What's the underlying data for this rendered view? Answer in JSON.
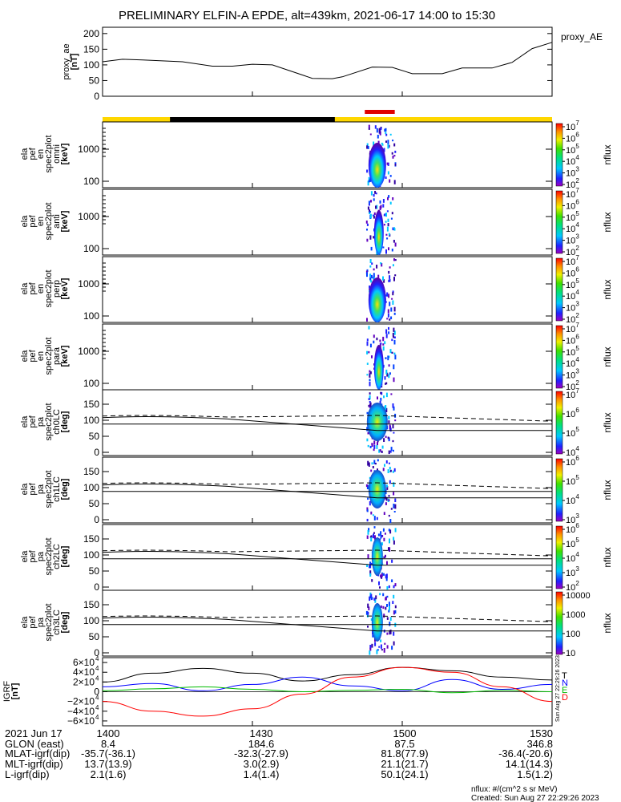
{
  "title": "PRELIMINARY ELFIN-A EPDE, alt=439km, 2021-06-17 14:00 to 15:30",
  "colors": {
    "line": "#000000",
    "bar_yellow": "#ffd700",
    "bar_black": "#000000",
    "bar_red": "#e00000",
    "n_blue": "#0000ff",
    "e_green": "#00bb00",
    "d_red": "#ff0000"
  },
  "chart_data": [
    {
      "type": "line",
      "panel": "proxy_ae",
      "ylabel": [
        "proxy_ae",
        "[nT]"
      ],
      "legend": "proxy_AE",
      "yticks": [
        "200",
        "150",
        "100",
        "50",
        "0"
      ],
      "ylim": [
        0,
        220
      ],
      "x_minutes": [
        0,
        4,
        8,
        16,
        22,
        26,
        30,
        34,
        42,
        46,
        48,
        54,
        58,
        62,
        68,
        72,
        78,
        82,
        86,
        90
      ],
      "values": [
        110,
        118,
        116,
        110,
        96,
        96,
        102,
        100,
        57,
        56,
        62,
        93,
        92,
        72,
        72,
        90,
        90,
        108,
        152,
        172
      ]
    },
    {
      "type": "heatmap",
      "panel": "omni",
      "ylabel": [
        "ela",
        "pef",
        "en",
        "spec2plot",
        "omni",
        "[keV]"
      ],
      "yticks": [
        "1000",
        "100"
      ],
      "cbar_label": "nflux",
      "cbar_ticks": [
        "10",
        "10",
        "10",
        "10",
        "10",
        "10"
      ],
      "cbar_exps": [
        "7",
        "6",
        "5",
        "4",
        "3",
        "2"
      ],
      "time_range": [
        "14:52",
        "14:55"
      ],
      "energy_range_keV": [
        60,
        7000
      ]
    },
    {
      "type": "heatmap",
      "panel": "anti",
      "ylabel": [
        "ela",
        "pef",
        "en",
        "spec2plot",
        "anti",
        "[keV]"
      ],
      "yticks": [
        "1000",
        "100"
      ],
      "cbar_label": "nflux",
      "cbar_ticks": [
        "10",
        "10",
        "10",
        "10",
        "10",
        "10"
      ],
      "cbar_exps": [
        "7",
        "6",
        "5",
        "4",
        "3",
        "2"
      ],
      "time_range": [
        "14:52",
        "14:55"
      ],
      "energy_range_keV": [
        60,
        7000
      ]
    },
    {
      "type": "heatmap",
      "panel": "perp",
      "ylabel": [
        "ela",
        "pef",
        "en",
        "spec2plot",
        "perp",
        "[keV]"
      ],
      "yticks": [
        "1000",
        "100"
      ],
      "cbar_label": "nflux",
      "cbar_ticks": [
        "10",
        "10",
        "10",
        "10",
        "10",
        "10"
      ],
      "cbar_exps": [
        "7",
        "6",
        "5",
        "4",
        "3",
        "2"
      ],
      "time_range": [
        "14:52",
        "14:55"
      ],
      "energy_range_keV": [
        60,
        7000
      ]
    },
    {
      "type": "heatmap",
      "panel": "para",
      "ylabel": [
        "ela",
        "pef",
        "en",
        "spec2plot",
        "para",
        "[keV]"
      ],
      "yticks": [
        "1000",
        "100"
      ],
      "cbar_label": "nflux",
      "cbar_ticks": [
        "10",
        "10",
        "10",
        "10",
        "10",
        "10"
      ],
      "cbar_exps": [
        "7",
        "6",
        "5",
        "4",
        "3",
        "2"
      ],
      "time_range": [
        "14:52",
        "14:55"
      ],
      "energy_range_keV": [
        60,
        7000
      ]
    },
    {
      "type": "heatmap",
      "panel": "ch0LC",
      "ylabel": [
        "ela",
        "pef",
        "pa",
        "spec2plot",
        "ch0LC",
        "[deg]"
      ],
      "yticks": [
        "150",
        "100",
        "50",
        "0"
      ],
      "ylim": [
        0,
        180
      ],
      "cbar_label": "nflux",
      "cbar_ticks": [
        "10",
        "10",
        "10",
        "10"
      ],
      "cbar_exps": [
        "7",
        "6",
        "5",
        "4"
      ],
      "time_range": [
        "14:52",
        "14:55"
      ],
      "solid_deg": [
        108,
        88,
        68
      ],
      "dashed_deg": [
        113,
        97
      ]
    },
    {
      "type": "heatmap",
      "panel": "ch1LC",
      "ylabel": [
        "ela",
        "pef",
        "pa",
        "spec2plot",
        "ch1LC",
        "[deg]"
      ],
      "yticks": [
        "150",
        "100",
        "50",
        "0"
      ],
      "ylim": [
        0,
        180
      ],
      "cbar_label": "nflux",
      "cbar_ticks": [
        "10",
        "10",
        "10",
        "10"
      ],
      "cbar_exps": [
        "6",
        "5",
        "4",
        "3"
      ],
      "time_range": [
        "14:52",
        "14:55"
      ],
      "solid_deg": [
        108,
        88,
        68
      ],
      "dashed_deg": [
        113,
        97
      ]
    },
    {
      "type": "heatmap",
      "panel": "ch2LC",
      "ylabel": [
        "ela",
        "pef",
        "pa",
        "spec2plot",
        "ch2LC",
        "[deg]"
      ],
      "yticks": [
        "150",
        "100",
        "50",
        "0"
      ],
      "ylim": [
        0,
        180
      ],
      "cbar_label": "nflux",
      "cbar_ticks": [
        "10",
        "10",
        "10",
        "10",
        "10"
      ],
      "cbar_exps": [
        "6",
        "5",
        "4",
        "3",
        "2"
      ],
      "time_range": [
        "14:52",
        "14:55"
      ],
      "solid_deg": [
        108,
        88,
        68
      ],
      "dashed_deg": [
        113,
        97
      ]
    },
    {
      "type": "heatmap",
      "panel": "ch3LC",
      "ylabel": [
        "ela",
        "pef",
        "pa",
        "spec2plot",
        "ch3LC",
        "[deg]"
      ],
      "yticks": [
        "150",
        "100",
        "50",
        "0"
      ],
      "ylim": [
        0,
        180
      ],
      "cbar_label": "nflux",
      "cbar_ticks": [
        "10000",
        "1000",
        "100",
        "10"
      ],
      "time_range": [
        "14:52",
        "14:55"
      ],
      "solid_deg": [
        108,
        88,
        68
      ],
      "dashed_deg": [
        113,
        97
      ]
    },
    {
      "type": "line",
      "panel": "IGRF",
      "ylabel": [
        "IGRF",
        "[nT]"
      ],
      "yticks": [
        "6×10",
        "4×10",
        "2×10",
        "0",
        "−2×10",
        "−4×10",
        "−6×10"
      ],
      "ytick_exp": "4",
      "ylim": [
        -70000,
        70000
      ],
      "series": [
        {
          "name": "T",
          "x_minutes": [
            0,
            10,
            20,
            30,
            40,
            50,
            60,
            70,
            80,
            90
          ],
          "values": [
            20000,
            38000,
            48000,
            38000,
            22000,
            35000,
            50000,
            43000,
            30000,
            24000
          ]
        },
        {
          "name": "N",
          "x_minutes": [
            0,
            10,
            20,
            30,
            40,
            50,
            60,
            70,
            80,
            90
          ],
          "values": [
            10000,
            17000,
            2000,
            15000,
            30000,
            12000,
            2000,
            25000,
            5000,
            15000
          ]
        },
        {
          "name": "E",
          "x_minutes": [
            0,
            10,
            20,
            30,
            40,
            50,
            60,
            70,
            80,
            90
          ],
          "values": [
            2000,
            6000,
            10000,
            5000,
            0,
            3000,
            5000,
            -2000,
            3000,
            0
          ]
        },
        {
          "name": "D",
          "x_minutes": [
            0,
            10,
            20,
            30,
            40,
            50,
            60,
            70,
            80,
            90
          ],
          "values": [
            -20000,
            -40000,
            -50000,
            -35000,
            -5000,
            30000,
            50000,
            40000,
            10000,
            -20000
          ]
        }
      ]
    }
  ],
  "time_axis": {
    "row_labels": [
      "2021 Jun 17",
      "GLON (east)",
      "MLAT-igrf(dip)",
      "MLT-igrf(dip)",
      "L-igrf(dip)"
    ],
    "columns": [
      {
        "values": [
          "1400",
          "8.4",
          "-35.7(-36.1)",
          "13.7(13.9)",
          "2.1(1.6)"
        ]
      },
      {
        "values": [
          "1430",
          "184.6",
          "-32.3(-27.9)",
          "3.0(2.9)",
          "1.4(1.4)"
        ]
      },
      {
        "values": [
          "1500",
          "87.5",
          "81.8(77.9)",
          "21.1(21.7)",
          "50.1(24.1)"
        ]
      },
      {
        "values": [
          "1530",
          "346.8",
          "-36.4(-20.6)",
          "14.1(14.3)",
          "1.5(1.2)"
        ]
      }
    ]
  },
  "footer": {
    "units": "nflux: #/(cm^2 s sr MeV)",
    "created": "Created: Sun Aug 27 22:29:26 2023",
    "side_stamp": "Sun Aug 27 22:29:26 2023"
  }
}
